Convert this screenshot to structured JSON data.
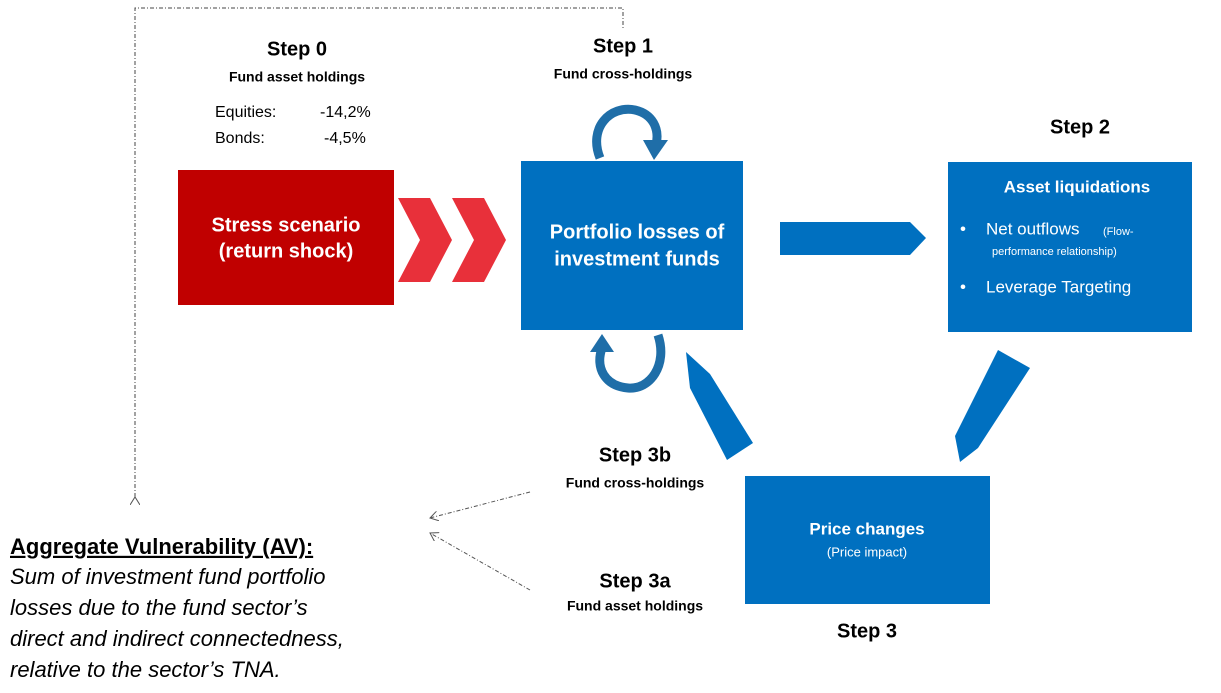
{
  "step0": {
    "title": "Step 0",
    "subtitle": "Fund asset holdings",
    "items": [
      {
        "label": "Equities:",
        "value": "-14,2%"
      },
      {
        "label": "Bonds:",
        "value": "-4,5%"
      }
    ]
  },
  "stress_box": {
    "lines": [
      "Stress scenario",
      "(return shock)"
    ]
  },
  "step1": {
    "title": "Step 1",
    "subtitle": "Fund cross-holdings"
  },
  "center_box": {
    "lines": [
      "Portfolio losses of",
      "investment funds"
    ]
  },
  "step2": {
    "title": "Step 2",
    "box_title": "Asset liquidations",
    "bullets": [
      {
        "text": "Net outflows",
        "note_lines": [
          "(Flow-",
          "performance relationship)"
        ]
      },
      {
        "text": "Leverage Targeting"
      }
    ]
  },
  "step3": {
    "title": "Step 3",
    "box_title": "Price changes",
    "box_note": "(Price impact)"
  },
  "step3b": {
    "title": "Step 3b",
    "subtitle": "Fund cross-holdings"
  },
  "step3a": {
    "title": "Step 3a",
    "subtitle": "Fund asset holdings"
  },
  "av": {
    "heading": "Aggregate Vulnerability  (AV):",
    "lines": [
      "Sum of investment fund portfolio",
      "losses due to the fund sector’s",
      "direct and indirect connectedness,",
      "relative to the sector’s TNA."
    ]
  }
}
